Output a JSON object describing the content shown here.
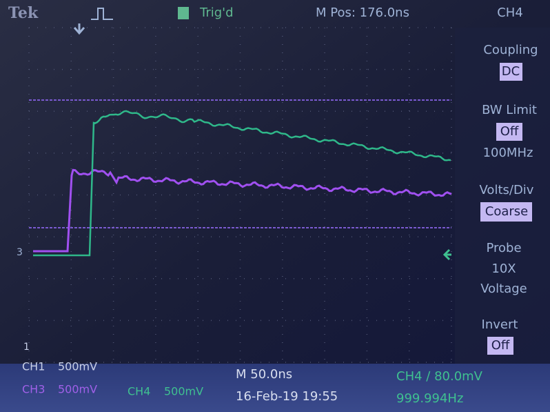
{
  "header": {
    "brand": "Tek",
    "trigger_status": "Trig'd",
    "position": "M Pos: 176.0ns",
    "channel": "CH4"
  },
  "menu": [
    {
      "label": "Coupling",
      "value": "DC"
    },
    {
      "label": "BW Limit",
      "value": "Off",
      "detail": "100MHz"
    },
    {
      "label": "Volts/Div",
      "value": "Coarse"
    },
    {
      "label": "Probe",
      "lines": [
        "10X",
        "Voltage"
      ]
    },
    {
      "label": "Invert",
      "value": "Off"
    }
  ],
  "markers": [
    "3",
    "1"
  ],
  "footer": {
    "ch1": "CH1",
    "ch1_scale": "500mV",
    "ch3": "CH3",
    "ch3_scale": "500mV",
    "ch4": "CH4",
    "ch4_scale": "500mV",
    "timebase": "M 50.0ns",
    "date": "16-Feb-19 19:55",
    "trigger": "CH4 ∕ 80.0mV",
    "frequency": "999.994Hz"
  }
}
